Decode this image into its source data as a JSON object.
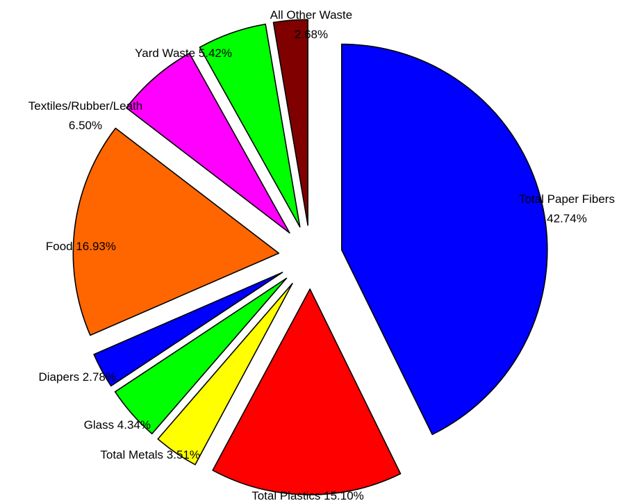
{
  "chart_data": {
    "type": "pie",
    "title": "",
    "series": [
      {
        "values": [
          {
            "label": "Total Paper Fibers",
            "value": 42.74,
            "value_label": "42.74%",
            "color": "#0000ff"
          },
          {
            "label": "Total Plastics",
            "value": 15.1,
            "value_label": "15.10%",
            "color": "#ff0000"
          },
          {
            "label": "Total Metals",
            "value": 3.51,
            "value_label": "3.51%",
            "color": "#ffff00"
          },
          {
            "label": "Glass",
            "value": 4.34,
            "value_label": "4.34%",
            "color": "#00ff00"
          },
          {
            "label": "Diapers",
            "value": 2.78,
            "value_label": "2.78%",
            "color": "#0000ff"
          },
          {
            "label": "Food",
            "value": 16.93,
            "value_label": "16.93%",
            "color": "#ff6600"
          },
          {
            "label": "Textiles/Rubber/Leath",
            "value": 6.5,
            "value_label": "6.50%",
            "color": "#ff00ff"
          },
          {
            "label": "Yard Waste",
            "value": 5.42,
            "value_label": "5.42%",
            "color": "#00ff00"
          },
          {
            "label": "All Other Waste",
            "value": 2.68,
            "value_label": "2.68%",
            "color": "#800000"
          }
        ]
      }
    ],
    "exploded": true,
    "start_angle": "12 o'clock",
    "direction": "clockwise",
    "legend": "none"
  }
}
